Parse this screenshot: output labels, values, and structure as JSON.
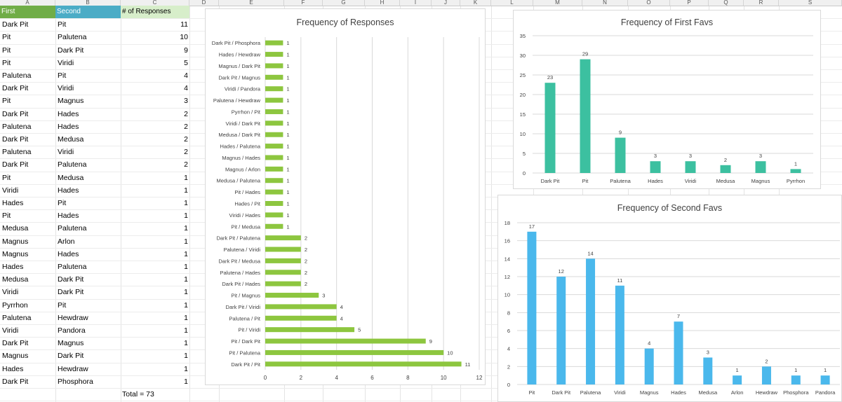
{
  "columns": [
    "A",
    "B",
    "C",
    "D",
    "E",
    "F",
    "G",
    "H",
    "I",
    "J",
    "K",
    "L",
    "M",
    "N",
    "O",
    "P",
    "Q",
    "R",
    "S"
  ],
  "table": {
    "headers": [
      "First",
      "Second",
      "# of Responses"
    ],
    "header_colors": [
      "#70ad47",
      "#4bacc6",
      "#d7eeca"
    ],
    "rows": [
      [
        "Dark Pit",
        "Pit",
        "11"
      ],
      [
        "Pit",
        "Palutena",
        "10"
      ],
      [
        "Pit",
        "Dark Pit",
        "9"
      ],
      [
        "Pit",
        "Viridi",
        "5"
      ],
      [
        "Palutena",
        "Pit",
        "4"
      ],
      [
        "Dark Pit",
        "Viridi",
        "4"
      ],
      [
        "Pit",
        "Magnus",
        "3"
      ],
      [
        "Dark Pit",
        "Hades",
        "2"
      ],
      [
        "Palutena",
        "Hades",
        "2"
      ],
      [
        "Dark Pit",
        "Medusa",
        "2"
      ],
      [
        "Palutena",
        "Viridi",
        "2"
      ],
      [
        "Dark Pit",
        "Palutena",
        "2"
      ],
      [
        "Pit",
        "Medusa",
        "1"
      ],
      [
        "Viridi",
        "Hades",
        "1"
      ],
      [
        "Hades",
        "Pit",
        "1"
      ],
      [
        "Pit",
        "Hades",
        "1"
      ],
      [
        "Medusa",
        "Palutena",
        "1"
      ],
      [
        "Magnus",
        "Arlon",
        "1"
      ],
      [
        "Magnus",
        "Hades",
        "1"
      ],
      [
        "Hades",
        "Palutena",
        "1"
      ],
      [
        "Medusa",
        "Dark Pit",
        "1"
      ],
      [
        "Viridi",
        "Dark Pit",
        "1"
      ],
      [
        "Pyrrhon",
        "Pit",
        "1"
      ],
      [
        "Palutena",
        "Hewdraw",
        "1"
      ],
      [
        "Viridi",
        "Pandora",
        "1"
      ],
      [
        "Dark Pit",
        "Magnus",
        "1"
      ],
      [
        "Magnus",
        "Dark Pit",
        "1"
      ],
      [
        "Hades",
        "Hewdraw",
        "1"
      ],
      [
        "Dark Pit",
        "Phosphora",
        "1"
      ]
    ],
    "total_label": "Total = 73"
  },
  "chart_data": [
    {
      "type": "bar",
      "orientation": "horizontal",
      "title": "Frequency of Responses",
      "color": "#8dc63f",
      "categories": [
        "Dark Pit / Phosphora",
        "Hades / Hewdraw",
        "Magnus / Dark Pit",
        "Dark Pit / Magnus",
        "Viridi / Pandora",
        "Palutena / Hewdraw",
        "Pyrrhon / Pit",
        "Viridi / Dark Pit",
        "Medusa / Dark Pit",
        "Hades / Palutena",
        "Magnus / Hades",
        "Magnus / Arlon",
        "Medusa / Palutena",
        "Pit / Hades",
        "Hades / Pit",
        "Viridi / Hades",
        "Pit / Medusa",
        "Dark Pit / Palutena",
        "Palutena / Viridi",
        "Dark Pit / Medusa",
        "Palutena / Hades",
        "Dark Pit / Hades",
        "Pit / Magnus",
        "Dark Pit / Viridi",
        "Palutena / Pit",
        "Pit / Viridi",
        "Pit / Dark Pit",
        "Pit / Palutena",
        "Dark Pit / Pit"
      ],
      "values": [
        1,
        1,
        1,
        1,
        1,
        1,
        1,
        1,
        1,
        1,
        1,
        1,
        1,
        1,
        1,
        1,
        1,
        2,
        2,
        2,
        2,
        2,
        3,
        4,
        4,
        5,
        9,
        10,
        11
      ],
      "xlim": [
        0,
        12
      ],
      "xticks": [
        "0",
        "2",
        "4",
        "6",
        "8",
        "10",
        "12"
      ]
    },
    {
      "type": "bar",
      "title": "Frequency of First Favs",
      "color": "#3cc0a0",
      "categories": [
        "Dark Pit",
        "Pit",
        "Palutena",
        "Hades",
        "Viridi",
        "Medusa",
        "Magnus",
        "Pyrrhon"
      ],
      "values": [
        23,
        29,
        9,
        3,
        3,
        2,
        3,
        1
      ],
      "ylim": [
        0,
        35
      ],
      "yticks": [
        "0",
        "5",
        "10",
        "15",
        "20",
        "25",
        "30",
        "35"
      ]
    },
    {
      "type": "bar",
      "title": "Frequency of Second Favs",
      "color": "#4ab8ec",
      "categories": [
        "Pit",
        "Dark Pit",
        "Palutena",
        "Viridi",
        "Magnus",
        "Hades",
        "Medusa",
        "Arlon",
        "Hewdraw",
        "Phosphora",
        "Pandora"
      ],
      "values": [
        17,
        12,
        14,
        11,
        4,
        7,
        3,
        1,
        2,
        1,
        1
      ],
      "ylim": [
        0,
        18
      ],
      "yticks": [
        "0",
        "2",
        "4",
        "6",
        "8",
        "10",
        "12",
        "14",
        "16",
        "18"
      ]
    }
  ]
}
